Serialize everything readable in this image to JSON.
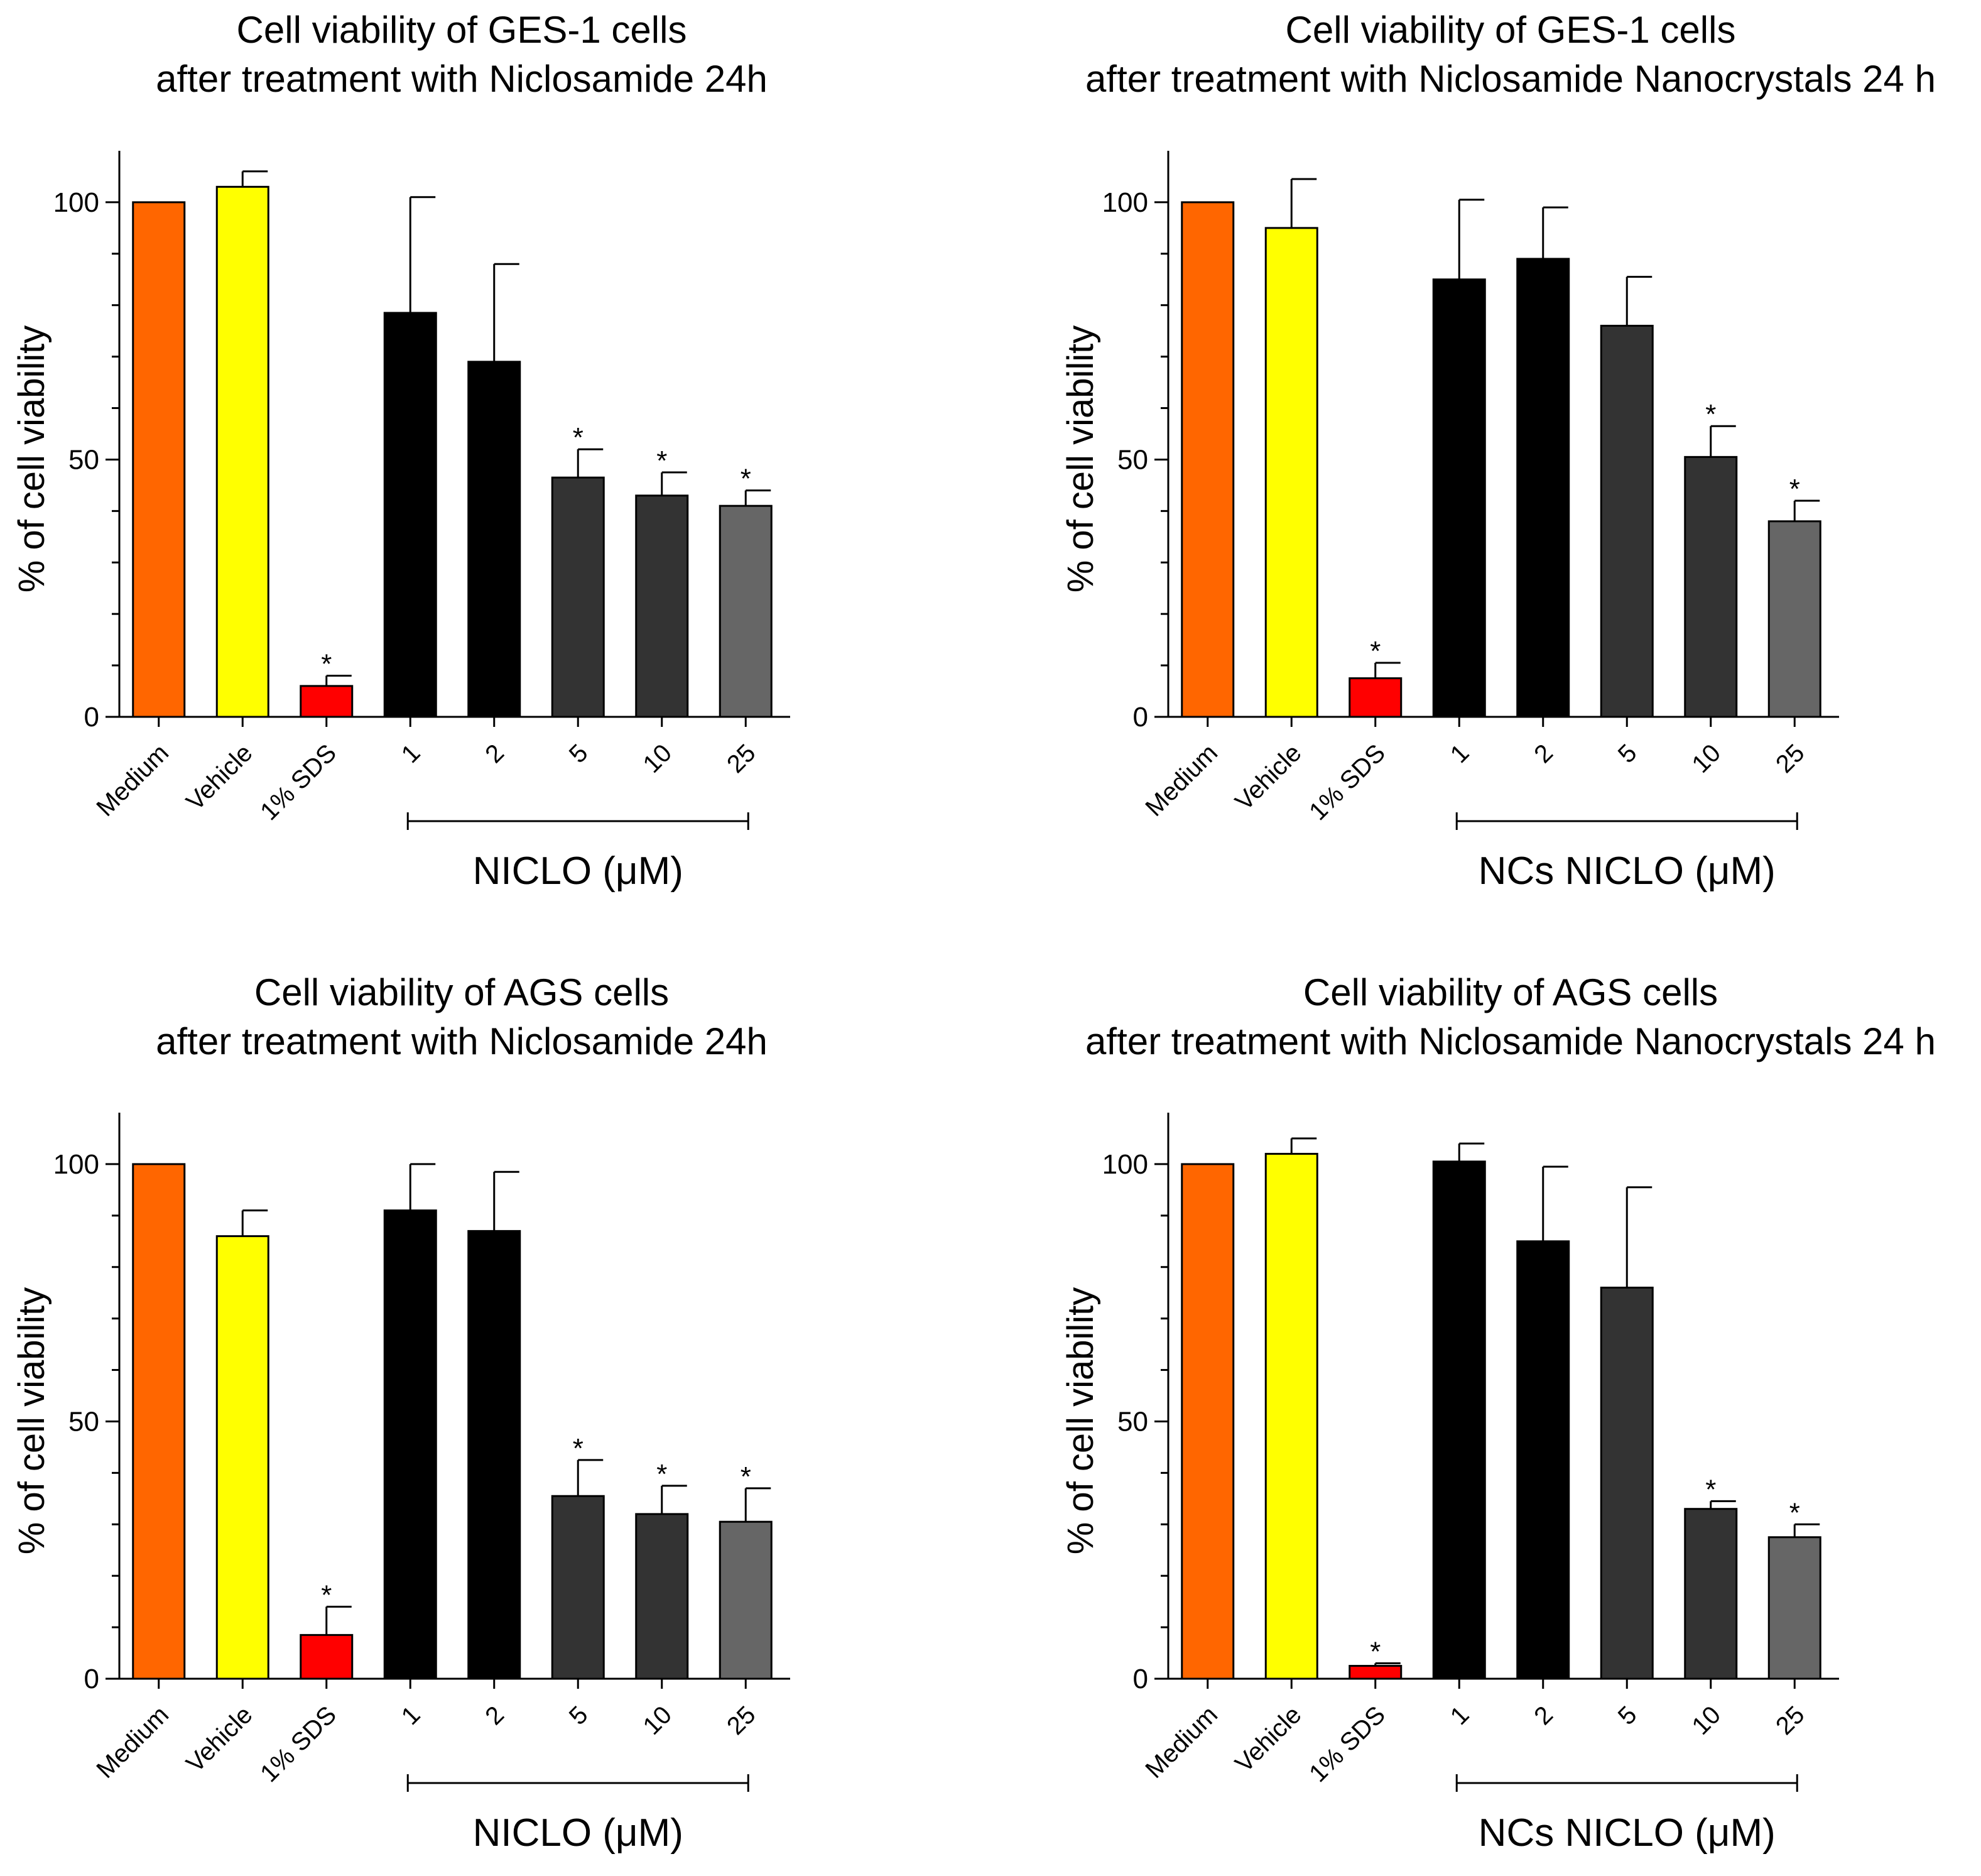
{
  "chart_data": [
    {
      "type": "bar",
      "title_line1": "Cell viability of GES-1 cells",
      "title_line2": "after treatment with Niclosamide 24h",
      "ylabel": "% of cell viability",
      "ylim": [
        0,
        110
      ],
      "yticks": [
        "0",
        "50",
        "100"
      ],
      "categories": [
        "Medium",
        "Vehicle",
        "1% SDS",
        "1",
        "2",
        "5",
        "10",
        "25"
      ],
      "values": [
        100,
        103,
        6,
        78.5,
        69,
        46.5,
        43,
        41
      ],
      "errors": [
        0,
        3,
        2,
        22.5,
        19,
        5.5,
        4.5,
        3
      ],
      "significant": [
        false,
        false,
        true,
        false,
        false,
        true,
        true,
        true
      ],
      "star_label": "*",
      "bar_colors": [
        "#FF6600",
        "#FFFF00",
        "#FF0000",
        "#000000",
        "#000000",
        "#333333",
        "#333333",
        "#666666"
      ],
      "bracket_label": "NICLO (μM)"
    },
    {
      "type": "bar",
      "title_line1": "Cell viability of GES-1 cells",
      "title_line2": "after treatment with Niclosamide Nanocrystals 24 h",
      "ylabel": "% of cell viability",
      "ylim": [
        0,
        110
      ],
      "yticks": [
        "0",
        "50",
        "100"
      ],
      "categories": [
        "Medium",
        "Vehicle",
        "1% SDS",
        "1",
        "2",
        "5",
        "10",
        "25"
      ],
      "values": [
        100,
        95,
        7.5,
        85,
        89,
        76,
        50.5,
        38
      ],
      "errors": [
        0,
        9.5,
        3,
        15.5,
        10,
        9.5,
        6,
        4
      ],
      "significant": [
        false,
        false,
        true,
        false,
        false,
        false,
        true,
        true
      ],
      "star_label": "*",
      "bar_colors": [
        "#FF6600",
        "#FFFF00",
        "#FF0000",
        "#000000",
        "#000000",
        "#333333",
        "#333333",
        "#666666"
      ],
      "bracket_label": "NCs NICLO (μM)"
    },
    {
      "type": "bar",
      "title_line1": "Cell viability of AGS cells",
      "title_line2": "after treatment with Niclosamide 24h",
      "ylabel": "% of cell viability",
      "ylim": [
        0,
        110
      ],
      "yticks": [
        "0",
        "50",
        "100"
      ],
      "categories": [
        "Medium",
        "Vehicle",
        "1% SDS",
        "1",
        "2",
        "5",
        "10",
        "25"
      ],
      "values": [
        100,
        86,
        8.5,
        91,
        87,
        35.5,
        32,
        30.5
      ],
      "errors": [
        0,
        5,
        5.5,
        9,
        11.5,
        7,
        5.5,
        6.5
      ],
      "significant": [
        false,
        false,
        true,
        false,
        false,
        true,
        true,
        true
      ],
      "star_label": "*",
      "bar_colors": [
        "#FF6600",
        "#FFFF00",
        "#FF0000",
        "#000000",
        "#000000",
        "#333333",
        "#333333",
        "#666666"
      ],
      "bracket_label": "NICLO (μM)"
    },
    {
      "type": "bar",
      "title_line1": "Cell viability of AGS cells",
      "title_line2": "after treatment with Niclosamide Nanocrystals 24 h",
      "ylabel": "% of cell viability",
      "ylim": [
        0,
        110
      ],
      "yticks": [
        "0",
        "50",
        "100"
      ],
      "categories": [
        "Medium",
        "Vehicle",
        "1% SDS",
        "1",
        "2",
        "5",
        "10",
        "25"
      ],
      "values": [
        100,
        102,
        2.5,
        100.5,
        85,
        76,
        33,
        27.5
      ],
      "errors": [
        0,
        3,
        0.5,
        3.5,
        14.5,
        19.5,
        1.5,
        2.5
      ],
      "significant": [
        false,
        false,
        true,
        false,
        false,
        false,
        true,
        true
      ],
      "star_label": "*",
      "bar_colors": [
        "#FF6600",
        "#FFFF00",
        "#FF0000",
        "#000000",
        "#000000",
        "#333333",
        "#333333",
        "#666666"
      ],
      "bracket_label": "NCs NICLO (μM)"
    }
  ]
}
